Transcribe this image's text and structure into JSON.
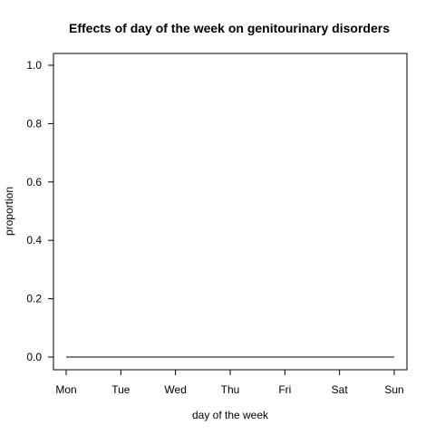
{
  "chart_data": {
    "type": "line",
    "title": "Effects of day of the week on genitourinary disorders",
    "xlabel": "day of the week",
    "ylabel": "proportion",
    "categories": [
      "Mon",
      "Tue",
      "Wed",
      "Thu",
      "Fri",
      "Sat",
      "Sun"
    ],
    "series": [
      {
        "values": [
          0,
          0,
          0,
          0,
          0,
          0,
          0
        ],
        "color": "#000000"
      }
    ],
    "ylim": [
      0,
      1
    ],
    "yticks": [
      "0.0",
      "0.2",
      "0.4",
      "0.6",
      "0.8",
      "1.0"
    ],
    "grid": false,
    "legend": "none"
  }
}
